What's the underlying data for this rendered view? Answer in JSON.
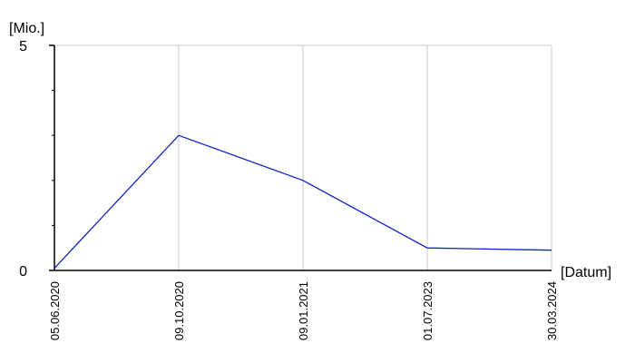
{
  "chart_data": {
    "type": "line",
    "y_label": "[Mio.]",
    "x_label": "[Datum]",
    "categories": [
      "05.06.2020",
      "09.10.2020",
      "09.01.2021",
      "01.07.2023",
      "30.03.2024"
    ],
    "values": [
      0.05,
      3,
      2,
      0.5,
      0.45
    ],
    "color": "#1020c8",
    "ylim": [
      0,
      5
    ],
    "yticks": [
      0,
      5
    ],
    "minor_yticks": [
      1,
      2,
      3,
      4
    ],
    "grid": true
  }
}
